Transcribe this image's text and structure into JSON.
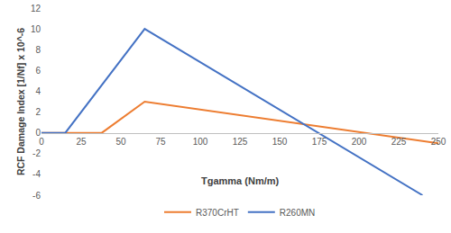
{
  "chart_data": {
    "type": "line",
    "x_label": "Tgamma (Nm/m)",
    "y_label": "RCF Damage Index [1/Nf] x 10^-6",
    "series": [
      {
        "name": "R370CrHT",
        "color": "#ED7D31",
        "x": [
          0,
          38,
          65,
          250
        ],
        "values": [
          0,
          0,
          3,
          -1
        ]
      },
      {
        "name": "R260MN",
        "color": "#4472C4",
        "x": [
          0,
          15,
          65,
          240
        ],
        "values": [
          0,
          0,
          10,
          -6
        ]
      }
    ],
    "xlim": [
      0,
      250
    ],
    "xticks": [
      0,
      25,
      50,
      75,
      100,
      125,
      150,
      175,
      200,
      225,
      250
    ],
    "ylim": [
      -6,
      12
    ],
    "yticks": [
      -6,
      -4,
      -2,
      0,
      2,
      4,
      6,
      8,
      10,
      12
    ],
    "grid": false,
    "legend": "bottom"
  }
}
